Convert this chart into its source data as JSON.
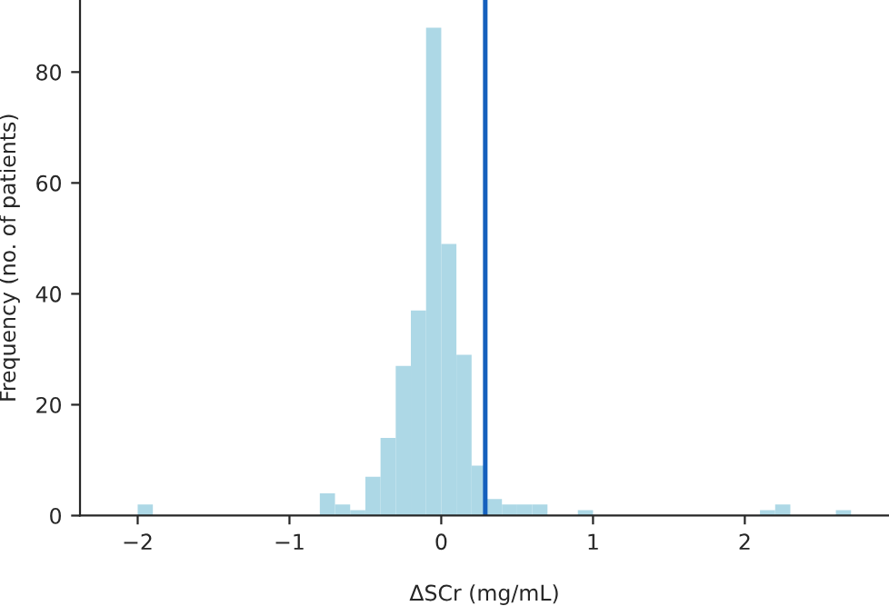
{
  "chart_data": {
    "type": "histogram",
    "xlabel": "ΔSCr (mg/mL)",
    "ylabel": "Frequency (no. of patients)",
    "bins": [
      -2.0,
      -1.9,
      -1.8,
      -1.7,
      -1.6,
      -1.5,
      -1.4,
      -1.3,
      -1.2,
      -1.1,
      -1.0,
      -0.9,
      -0.8,
      -0.7,
      -0.6,
      -0.5,
      -0.4,
      -0.3,
      -0.2,
      -0.1,
      0.0,
      0.1,
      0.2,
      0.3,
      0.4,
      0.5,
      0.6,
      0.7,
      0.8,
      0.9,
      1.0,
      1.1,
      1.2,
      1.3,
      1.4,
      1.5,
      1.6,
      1.7,
      1.8,
      1.9,
      2.0,
      2.1,
      2.2,
      2.3,
      2.4,
      2.5,
      2.6,
      2.7
    ],
    "values": [
      2,
      0,
      0,
      0,
      0,
      0,
      0,
      0,
      0,
      0,
      0,
      0,
      4,
      2,
      1,
      7,
      14,
      27,
      37,
      88,
      49,
      29,
      9,
      3,
      2,
      2,
      2,
      0,
      0,
      1,
      0,
      0,
      0,
      0,
      0,
      0,
      0,
      0,
      0,
      0,
      0,
      1,
      2,
      0,
      0,
      0,
      1
    ],
    "color": "#add8e6",
    "ref_lines": [
      {
        "axis": "x",
        "value": 0.29,
        "color": "#1560bd"
      }
    ],
    "xlim": [
      -2.38,
      2.95
    ],
    "ylim": [
      0,
      93
    ],
    "xticks": [
      {
        "value": -2,
        "label": "−2"
      },
      {
        "value": -1,
        "label": "−1"
      },
      0,
      1,
      2
    ],
    "yticks": [
      0,
      20,
      40,
      60,
      80
    ],
    "grid": false
  }
}
